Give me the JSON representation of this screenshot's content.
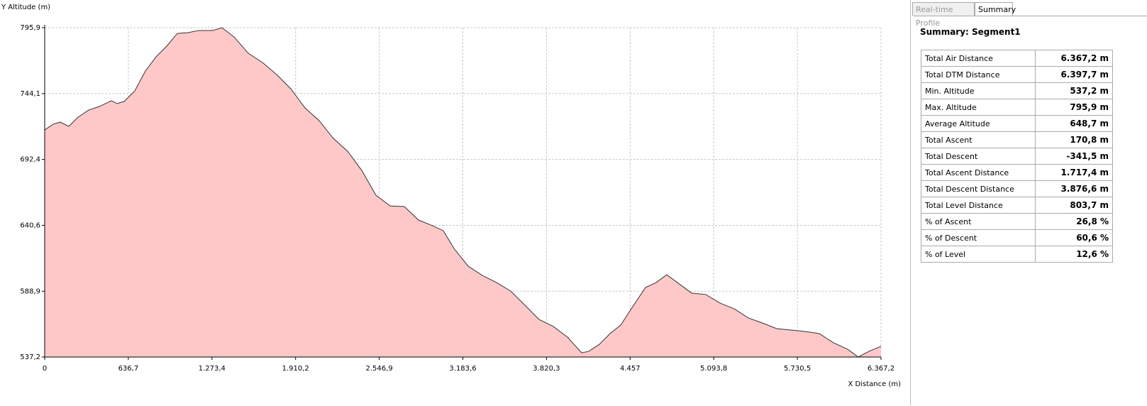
{
  "chart_data": {
    "type": "area",
    "y_axis_label": "Y Altitude (m)",
    "x_axis_label": "X Distance (m)",
    "color": "#ffc8c8",
    "line_color": "#333333",
    "grid": true,
    "x": [
      0,
      64.8,
      118.8,
      183.6,
      253.8,
      334.8,
      415.8,
      507.6,
      550.9,
      604.9,
      685.9,
      766.9,
      847.9,
      928.9,
      1009.9,
      1090.9,
      1171.9,
      1279.9,
      1350.1,
      1441.9,
      1549.9,
      1657.9,
      1765.9,
      1873.9,
      1981.9,
      2089.9,
      2197.9,
      2305.9,
      2413.9,
      2521.9,
      2630.0,
      2738.0,
      2846.0,
      2954.1,
      3035.1,
      3116.1,
      3224.1,
      3332.1,
      3440.1,
      3548.1,
      3656.1,
      3764.1,
      3872.2,
      3980.2,
      4088.2,
      4142.2,
      4223.2,
      4304.2,
      4385.2,
      4466.2,
      4574.2,
      4655.2,
      4736.2,
      4817.2,
      4925.3,
      5033.3,
      5141.3,
      5249.3,
      5357.3,
      5465.3,
      5573.3,
      5681.3,
      5789.3,
      5897.3,
      6005.4,
      6113.4,
      6194.4,
      6275.4,
      6367.2
    ],
    "values": [
      715.6,
      720.1,
      721.7,
      718.4,
      725.6,
      731.2,
      734.0,
      738.5,
      736.3,
      737.9,
      746.3,
      761.9,
      773.0,
      781.4,
      791.4,
      792.0,
      793.7,
      793.7,
      795.9,
      788.6,
      775.8,
      768.6,
      759.1,
      747.9,
      732.9,
      722.8,
      708.9,
      698.9,
      683.8,
      664.3,
      655.9,
      655.4,
      644.8,
      640.3,
      636.4,
      622.5,
      608.6,
      601.3,
      595.7,
      589.0,
      577.9,
      566.7,
      561.2,
      552.8,
      540.5,
      541.7,
      547.2,
      555.6,
      562.3,
      575.1,
      591.8,
      595.7,
      601.9,
      595.7,
      587.4,
      586.3,
      579.6,
      575.1,
      567.9,
      563.9,
      559.5,
      558.4,
      557.3,
      555.6,
      548.4,
      543.3,
      537.2,
      541.7,
      545.6
    ],
    "xlim": [
      0,
      6367.2
    ],
    "ylim": [
      537.2,
      795.9
    ],
    "xticks": [
      0,
      {
        "value": 636.7,
        "label": "636,7"
      },
      {
        "value": 1273.4,
        "label": "1.273,4"
      },
      {
        "value": 1910.2,
        "label": "1.910,2"
      },
      {
        "value": 2546.9,
        "label": "2.546,9"
      },
      {
        "value": 3183.6,
        "label": "3.183,6"
      },
      {
        "value": 3820.3,
        "label": "3.820,3"
      },
      {
        "value": 4457,
        "label": "4.457"
      },
      {
        "value": 5093.8,
        "label": "5.093,8"
      },
      {
        "value": 5730.5,
        "label": "5.730,5"
      },
      {
        "value": 6367.2,
        "label": "6.367,2"
      }
    ],
    "yticks": [
      {
        "value": 537.2,
        "label": "537,2"
      },
      {
        "value": 588.9,
        "label": "588,9"
      },
      {
        "value": 640.6,
        "label": "640,6"
      },
      {
        "value": 692.4,
        "label": "692,4"
      },
      {
        "value": 744.1,
        "label": "744,1"
      },
      {
        "value": 795.9,
        "label": "795,9"
      }
    ]
  },
  "tabs": [
    "Real-time Profile",
    "Summary"
  ],
  "summary": {
    "title": "Summary: Segment1",
    "rows": [
      [
        "Total Air Distance",
        "6.367,2 m"
      ],
      [
        "Total DTM Distance",
        "6.397,7 m"
      ],
      [
        "Min. Altitude",
        "537,2 m"
      ],
      [
        "Max. Altitude",
        "795,9 m"
      ],
      [
        "Average Altitude",
        "648,7 m"
      ],
      [
        "Total Ascent",
        "170,8 m"
      ],
      [
        "Total Descent",
        "-341,5 m"
      ],
      [
        "Total Ascent Distance",
        "1.717,4 m"
      ],
      [
        "Total Descent Distance",
        "3.876,6 m"
      ],
      [
        "Total Level Distance",
        "803,7 m"
      ],
      [
        "% of Ascent",
        "26,8 %"
      ],
      [
        "% of Descent",
        "60,6 %"
      ],
      [
        "% of Level",
        "12,6 %"
      ]
    ]
  }
}
